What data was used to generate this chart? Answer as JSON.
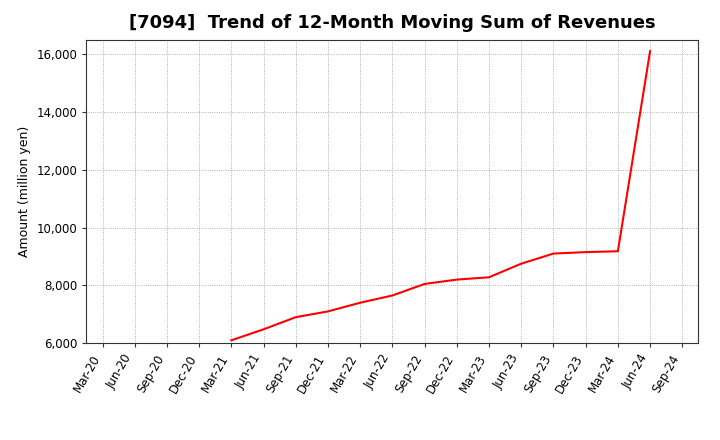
{
  "title": "[7094]  Trend of 12-Month Moving Sum of Revenues",
  "ylabel": "Amount (million yen)",
  "line_color": "#FF0000",
  "line_width": 1.5,
  "background_color": "#FFFFFF",
  "grid_color": "#999999",
  "ylim": [
    6000,
    16500
  ],
  "yticks": [
    6000,
    8000,
    10000,
    12000,
    14000,
    16000
  ],
  "x_labels": [
    "Mar-20",
    "Jun-20",
    "Sep-20",
    "Dec-20",
    "Mar-21",
    "Jun-21",
    "Sep-21",
    "Dec-21",
    "Mar-22",
    "Jun-22",
    "Sep-22",
    "Dec-22",
    "Mar-23",
    "Jun-23",
    "Sep-23",
    "Dec-23",
    "Mar-24",
    "Jun-24",
    "Sep-24"
  ],
  "data_x_labels": [
    "Mar-21",
    "Jun-21",
    "Sep-21",
    "Dec-21",
    "Mar-22",
    "Jun-22",
    "Sep-22",
    "Dec-22",
    "Mar-23",
    "Jun-23",
    "Sep-23",
    "Dec-23",
    "Mar-24",
    "Jun-24"
  ],
  "data_y_values": [
    6100,
    6480,
    6900,
    7100,
    7400,
    7650,
    8050,
    8200,
    8280,
    8750,
    9100,
    9150,
    9180,
    16100
  ],
  "title_fontsize": 13,
  "tick_fontsize": 8.5,
  "ylabel_fontsize": 9
}
